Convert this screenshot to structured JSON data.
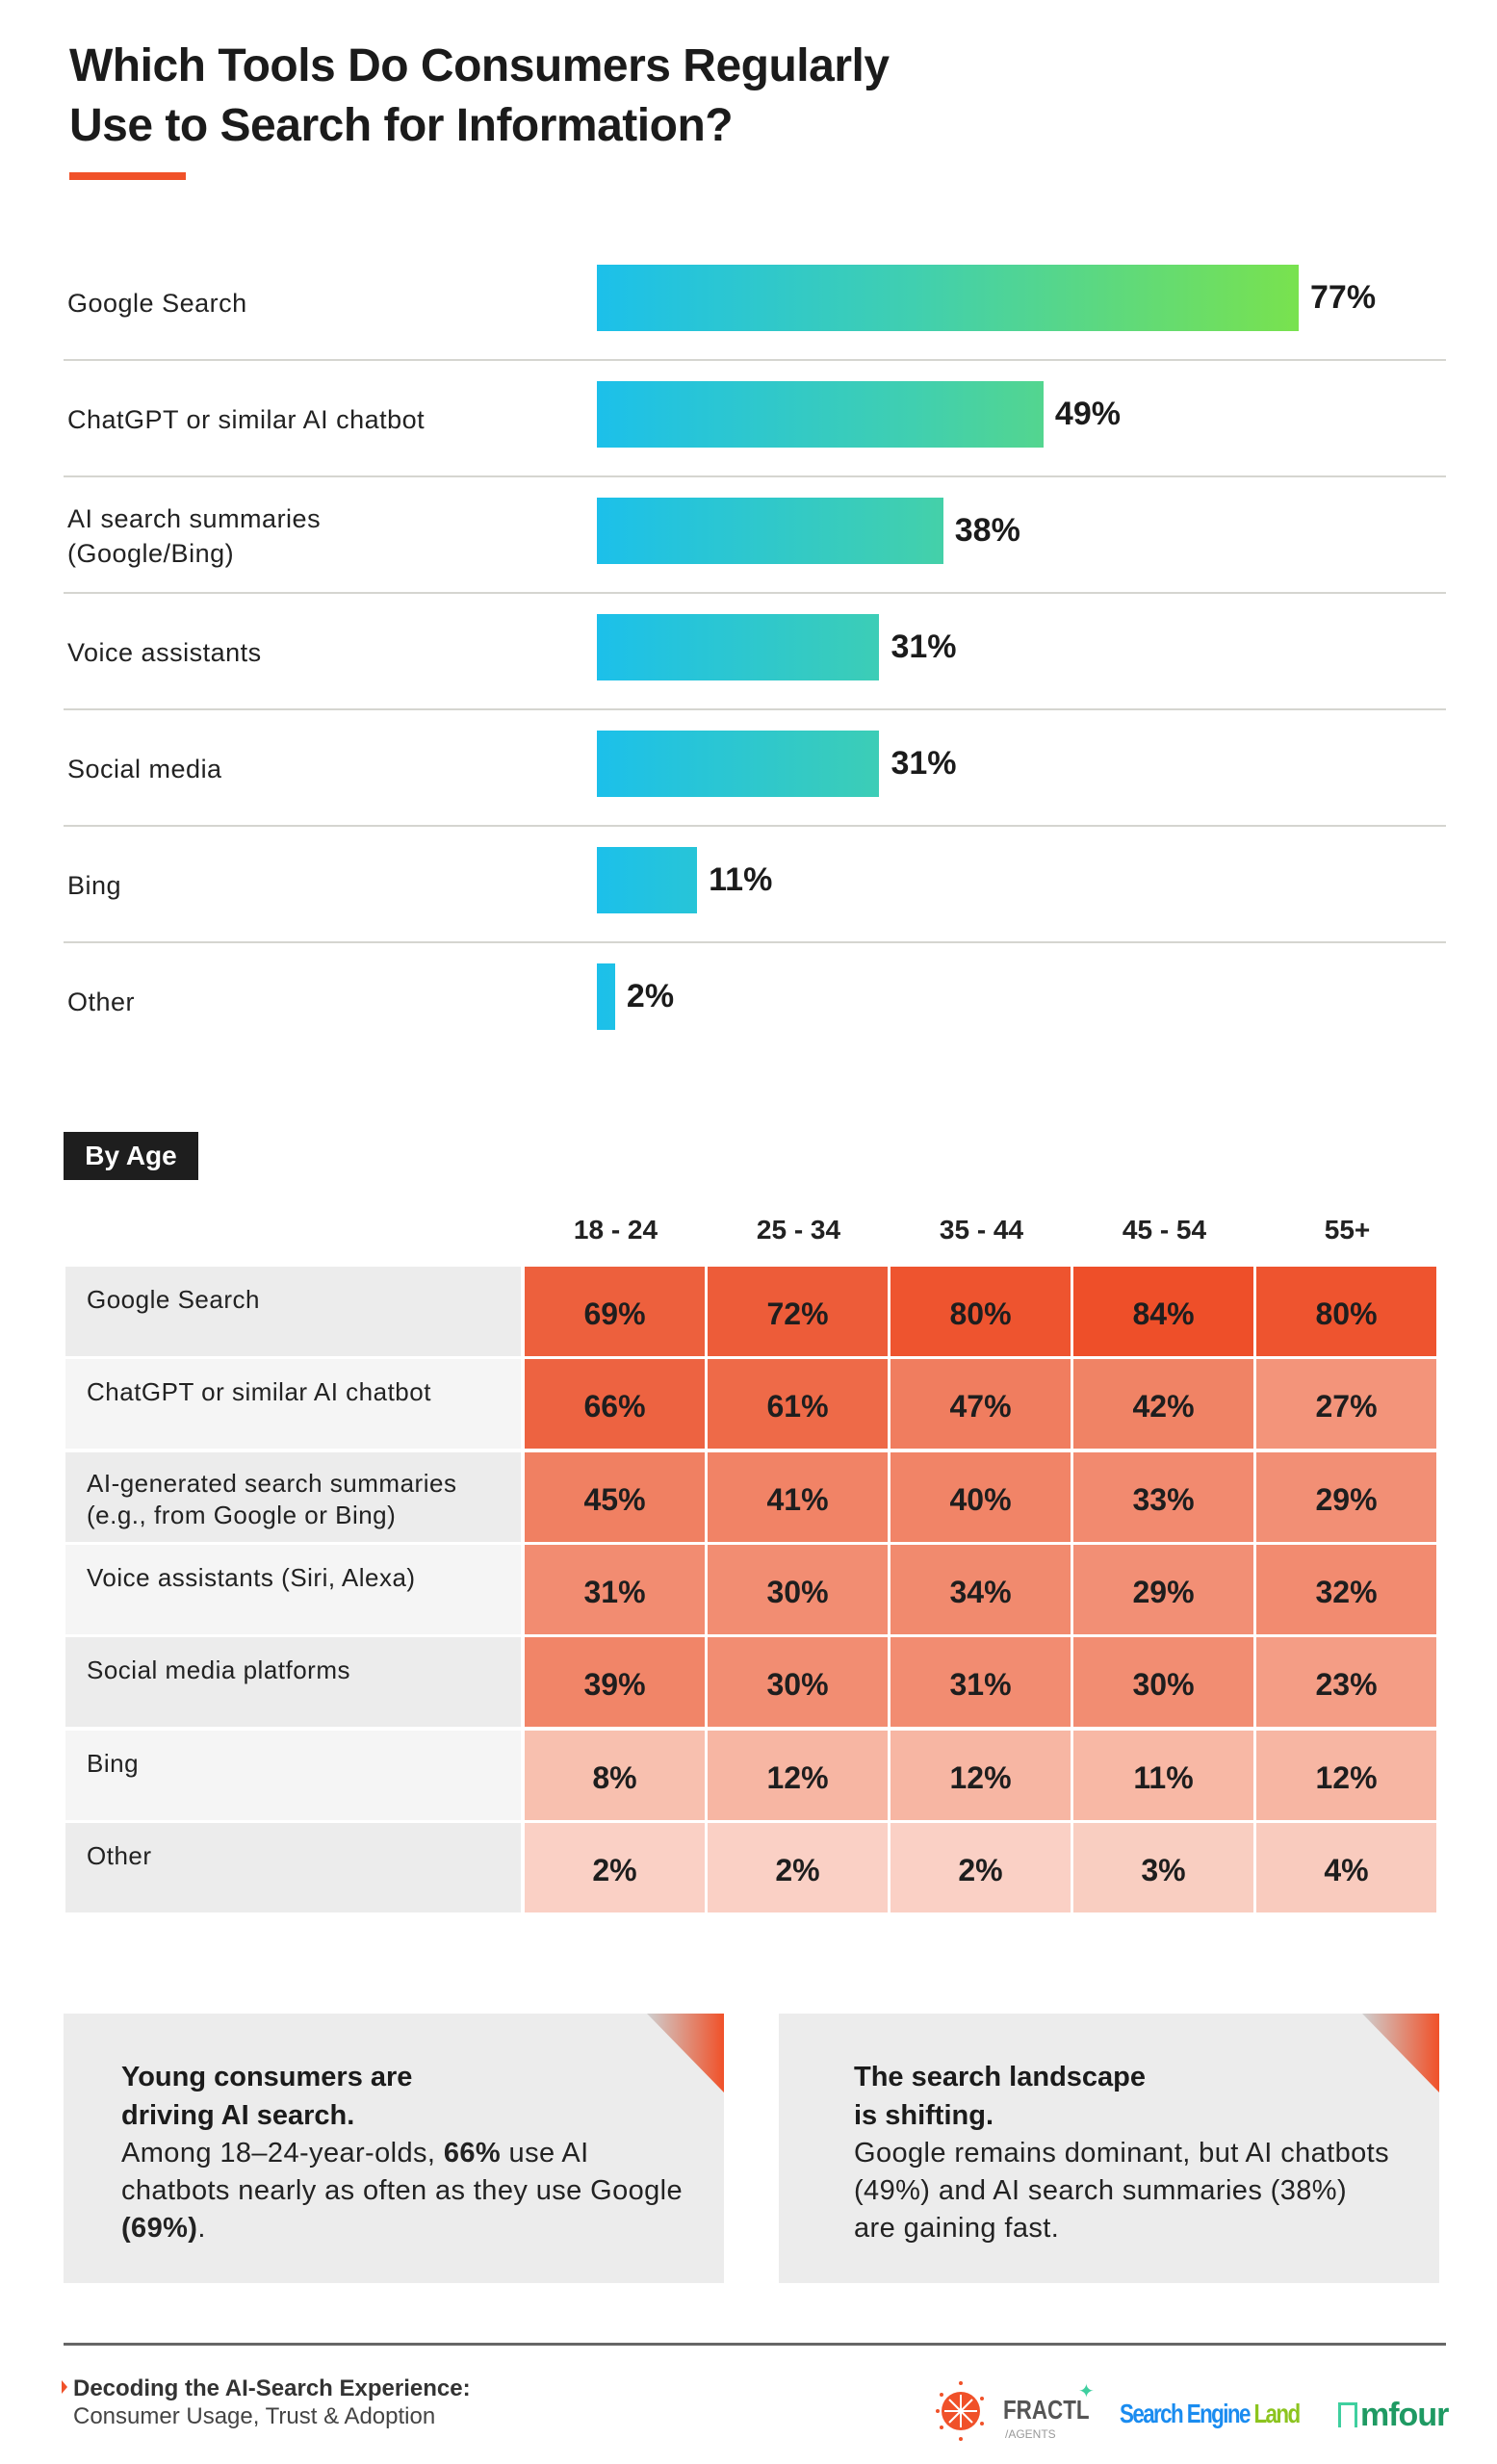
{
  "title_line1": "Which Tools Do Consumers Regularly",
  "title_line2": "Use to Search for Information?",
  "colors": {
    "accent": "#f05129",
    "bar_start": "#1cc0ea",
    "bar_end": "#79e24e",
    "heat_high": "#ee4f2a",
    "heat_low": "#fad2c8"
  },
  "chart_data": [
    {
      "type": "bar",
      "orientation": "horizontal",
      "title": "Which Tools Do Consumers Regularly Use to Search for Information?",
      "categories": [
        "Google Search",
        "ChatGPT or similar AI chatbot",
        "AI search summaries (Google/Bing)",
        "Voice assistants",
        "Social media",
        "Bing",
        "Other"
      ],
      "values": [
        77,
        49,
        38,
        31,
        31,
        11,
        2
      ],
      "labels": [
        "77%",
        "49%",
        "38%",
        "31%",
        "31%",
        "11%",
        "2%"
      ],
      "unit": "%"
    },
    {
      "type": "heatmap",
      "title": "By Age",
      "columns": [
        "18 - 24",
        "25 - 34",
        "35 - 44",
        "45 - 54",
        "55+"
      ],
      "rows": [
        "Google Search",
        "ChatGPT or similar AI chatbot",
        "AI-generated search summaries (e.g., from Google or Bing)",
        "Voice assistants (Siri, Alexa)",
        "Social media platforms",
        "Bing",
        "Other"
      ],
      "values": [
        [
          69,
          72,
          80,
          84,
          80
        ],
        [
          66,
          61,
          47,
          42,
          27
        ],
        [
          45,
          41,
          40,
          33,
          29
        ],
        [
          31,
          30,
          34,
          29,
          32
        ],
        [
          39,
          30,
          31,
          30,
          23
        ],
        [
          8,
          12,
          12,
          11,
          12
        ],
        [
          2,
          2,
          2,
          3,
          4
        ]
      ],
      "unit": "%"
    }
  ],
  "bar_labels": {
    "0": "Google Search",
    "1": "ChatGPT or similar AI chatbot",
    "2a": "AI search summaries",
    "2b": "(Google/Bing)",
    "3": "Voice assistants",
    "4": "Social media",
    "5": "Bing",
    "6": "Other"
  },
  "by_age_label": "By Age",
  "table_row_labels": {
    "0": "Google Search",
    "1": "ChatGPT or similar AI chatbot",
    "2a": "AI-generated search summaries",
    "2b": "(e.g., from Google or Bing)",
    "3": "Voice assistants (Siri, Alexa)",
    "4": "Social media platforms",
    "5": "Bing",
    "6": "Other"
  },
  "cards": [
    {
      "heading_line1": "Young consumers are",
      "heading_line2": "driving AI search.",
      "body_pre": "Among 18–24-year-olds, ",
      "body_bold1": "66%",
      "body_mid": " use AI chatbots nearly as often as they use Google ",
      "body_bold2": "(69%)",
      "body_post": "."
    },
    {
      "heading_line1": "The search landscape",
      "heading_line2": "is shifting.",
      "body": "Google remains dominant, but AI chatbots (49%) and AI search summaries (38%) are gaining fast."
    }
  ],
  "footer": {
    "title": "Decoding the AI-Search Experience:",
    "subtitle": "Consumer Usage, Trust & Adoption",
    "logos": {
      "fractl": "FRACTL",
      "fractl_sub": "/AGENTS",
      "sel_a": "Search Engine ",
      "sel_b": "Land",
      "mfour": "mfour"
    }
  }
}
